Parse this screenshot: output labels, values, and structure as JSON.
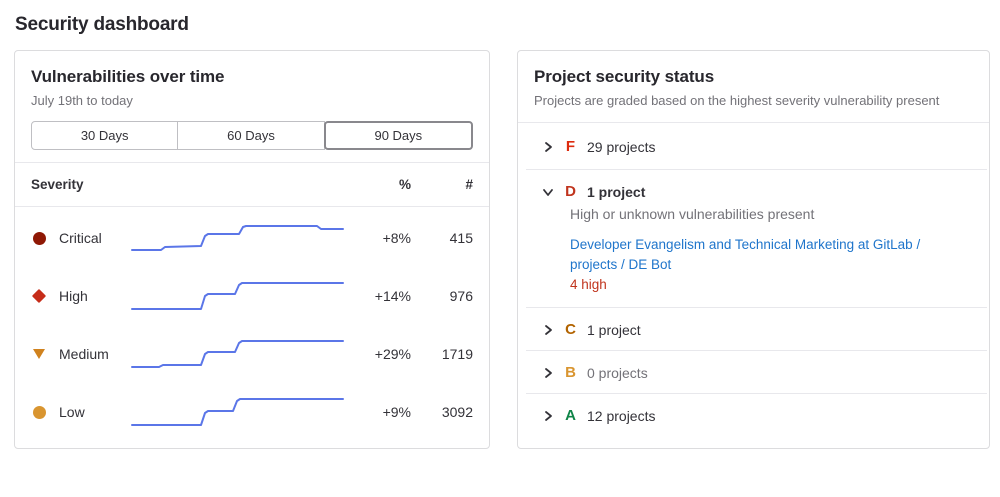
{
  "page": {
    "title": "Security dashboard"
  },
  "colors": {
    "link_blue": "#1f75cb",
    "trend_line": "#5b76e8",
    "danger_text": "#c0341d",
    "divider": "#e8e8ec"
  },
  "vuln_card": {
    "title": "Vulnerabilities over time",
    "subtitle": "July 19th to today",
    "range_buttons": [
      {
        "label": "30 Days",
        "selected": false
      },
      {
        "label": "60 Days",
        "selected": false
      },
      {
        "label": "90 Days",
        "selected": true
      }
    ],
    "table": {
      "severity_header": "Severity",
      "percent_header": "%",
      "count_header": "#",
      "trend_color": "#5b76e8",
      "rows": [
        {
          "severity": "Critical",
          "icon": "severity-critical-icon",
          "shape": "circle",
          "color": "#8f1805",
          "percent": "+8%",
          "count": "415",
          "trend": [
            [
              1,
              29
            ],
            [
              30,
              29
            ],
            [
              34,
              26
            ],
            [
              70,
              25
            ],
            [
              74,
              15
            ],
            [
              77,
              13
            ],
            [
              108,
              13
            ],
            [
              112,
              6
            ],
            [
              115,
              5
            ],
            [
              186,
              5
            ],
            [
              190,
              8
            ],
            [
              212,
              8
            ]
          ]
        },
        {
          "severity": "High",
          "icon": "severity-high-icon",
          "shape": "diamond",
          "color": "#c62d19",
          "percent": "+14%",
          "count": "976",
          "trend": [
            [
              1,
              30
            ],
            [
              70,
              30
            ],
            [
              74,
              17
            ],
            [
              77,
              15
            ],
            [
              104,
              15
            ],
            [
              108,
              6
            ],
            [
              111,
              4
            ],
            [
              212,
              4
            ]
          ]
        },
        {
          "severity": "Medium",
          "icon": "severity-medium-icon",
          "shape": "triangle-down",
          "color": "#d0821e",
          "percent": "+29%",
          "count": "1719",
          "trend": [
            [
              1,
              30
            ],
            [
              28,
              30
            ],
            [
              32,
              28
            ],
            [
              70,
              28
            ],
            [
              74,
              17
            ],
            [
              77,
              15
            ],
            [
              104,
              15
            ],
            [
              108,
              6
            ],
            [
              111,
              4
            ],
            [
              212,
              4
            ]
          ]
        },
        {
          "severity": "Low",
          "icon": "severity-low-icon",
          "shape": "circle",
          "color": "#d99530",
          "percent": "+9%",
          "count": "3092",
          "trend": [
            [
              1,
              30
            ],
            [
              70,
              30
            ],
            [
              74,
              18
            ],
            [
              77,
              16
            ],
            [
              102,
              16
            ],
            [
              106,
              6
            ],
            [
              109,
              4
            ],
            [
              212,
              4
            ]
          ]
        }
      ]
    }
  },
  "status_card": {
    "title": "Project security status",
    "subtitle": "Projects are graded based on the highest severity vulnerability present",
    "grades": [
      {
        "letter": "F",
        "color": "#dd2b0e",
        "label": "29 projects",
        "expanded": false
      },
      {
        "letter": "D",
        "color": "#c0341d",
        "label": "1 project",
        "expanded": true,
        "label_bold": true,
        "description": "High or unknown vulnerabilities present",
        "project_link": "Developer Evangelism and Technical Marketing at GitLab / projects / DE Bot",
        "vuln_count": "4 high"
      },
      {
        "letter": "C",
        "color": "#b26300",
        "label": "1 project",
        "expanded": false
      },
      {
        "letter": "B",
        "color": "#d99530",
        "label": "0 projects",
        "expanded": false,
        "muted": true
      },
      {
        "letter": "A",
        "color": "#108548",
        "label": "12 projects",
        "expanded": false
      }
    ]
  }
}
